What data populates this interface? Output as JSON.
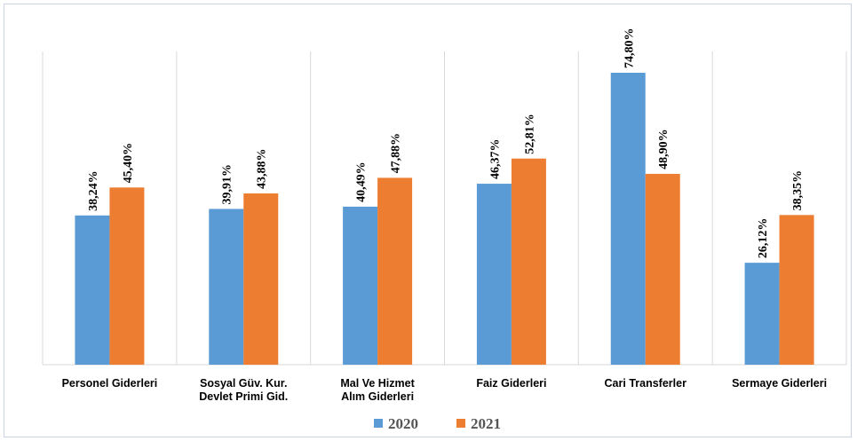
{
  "chart_data": {
    "type": "bar",
    "categories": [
      [
        "Personel Giderleri"
      ],
      [
        "Sosyal Güv. Kur.",
        "Devlet Primi Gid."
      ],
      [
        "Mal Ve Hizmet",
        "Alım Giderleri"
      ],
      [
        "Faiz Giderleri"
      ],
      [
        "Cari Transferler"
      ],
      [
        "Sermaye Giderleri"
      ]
    ],
    "series": [
      {
        "name": "2020",
        "color": "#5B9BD5",
        "values": [
          38.24,
          39.91,
          40.49,
          46.37,
          74.8,
          26.12
        ],
        "labels": [
          "38,24%",
          "39,91%",
          "40,49%",
          "46,37%",
          "74,80%",
          "26,12%"
        ]
      },
      {
        "name": "2021",
        "color": "#ED7D31",
        "values": [
          45.4,
          43.88,
          47.88,
          52.81,
          48.9,
          38.35
        ],
        "labels": [
          "45,40%",
          "43,88%",
          "47,88%",
          "52,81%",
          "48,90%",
          "38,35%"
        ]
      }
    ],
    "ylim": [
      0,
      100
    ],
    "grid": "vertical-separators",
    "legend": "bottom-center"
  }
}
